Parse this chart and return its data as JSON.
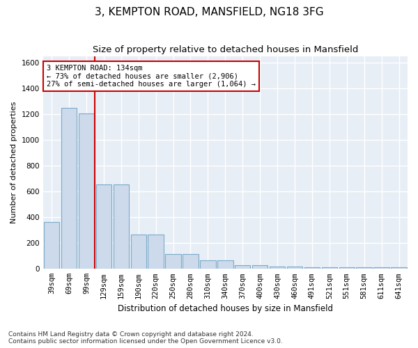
{
  "title": "3, KEMPTON ROAD, MANSFIELD, NG18 3FG",
  "subtitle": "Size of property relative to detached houses in Mansfield",
  "xlabel": "Distribution of detached houses by size in Mansfield",
  "ylabel": "Number of detached properties",
  "categories": [
    "39sqm",
    "69sqm",
    "99sqm",
    "129sqm",
    "159sqm",
    "190sqm",
    "220sqm",
    "250sqm",
    "280sqm",
    "310sqm",
    "340sqm",
    "370sqm",
    "400sqm",
    "430sqm",
    "460sqm",
    "491sqm",
    "521sqm",
    "551sqm",
    "581sqm",
    "611sqm",
    "641sqm"
  ],
  "values": [
    365,
    1250,
    1205,
    655,
    655,
    265,
    265,
    115,
    115,
    65,
    65,
    30,
    30,
    20,
    20,
    15,
    15,
    10,
    10,
    10,
    10
  ],
  "bar_color": "#ccdaeb",
  "bar_edge_color": "#7aaac8",
  "vline_color": "#cc0000",
  "annotation_text": "3 KEMPTON ROAD: 134sqm\n← 73% of detached houses are smaller (2,906)\n27% of semi-detached houses are larger (1,064) →",
  "annotation_box_color": "#ffffff",
  "annotation_box_edge_color": "#cc0000",
  "ylim": [
    0,
    1650
  ],
  "yticks": [
    0,
    200,
    400,
    600,
    800,
    1000,
    1200,
    1400,
    1600
  ],
  "axes_bg_color": "#e8eef6",
  "grid_color": "#ffffff",
  "footer_line1": "Contains HM Land Registry data © Crown copyright and database right 2024.",
  "footer_line2": "Contains public sector information licensed under the Open Government Licence v3.0.",
  "title_fontsize": 11,
  "subtitle_fontsize": 9.5,
  "axis_label_fontsize": 8.5,
  "tick_fontsize": 7.5,
  "ylabel_fontsize": 8
}
